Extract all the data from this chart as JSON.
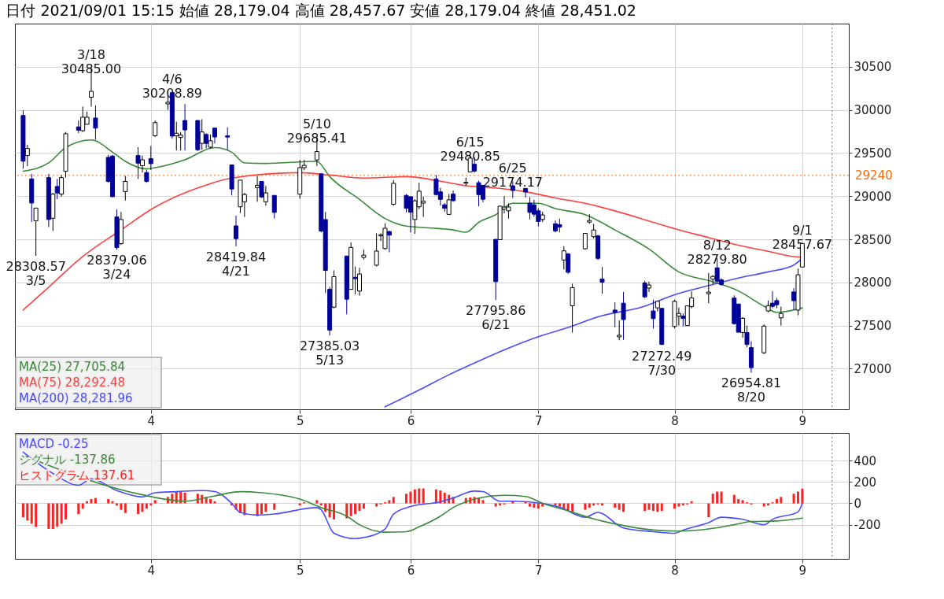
{
  "chart_data": [
    {
      "type": "candlestick",
      "title": "日付 2021/09/01 15:15 始値 28,179.04 高値 28,457.67 安値 28,179.04 終値 28,451.02",
      "x": [
        "2021-03-02",
        "2021-03-03",
        "2021-03-04",
        "2021-03-05",
        "2021-03-08",
        "2021-03-09",
        "2021-03-10",
        "2021-03-11",
        "2021-03-12",
        "2021-03-15",
        "2021-03-16",
        "2021-03-17",
        "2021-03-18",
        "2021-03-19",
        "2021-03-22",
        "2021-03-23",
        "2021-03-24",
        "2021-03-25",
        "2021-03-26",
        "2021-03-29",
        "2021-03-30",
        "2021-03-31",
        "2021-04-01",
        "2021-04-02",
        "2021-04-05",
        "2021-04-06",
        "2021-04-07",
        "2021-04-08",
        "2021-04-09",
        "2021-04-12",
        "2021-04-13",
        "2021-04-14",
        "2021-04-15",
        "2021-04-16",
        "2021-04-19",
        "2021-04-20",
        "2021-04-21",
        "2021-04-22",
        "2021-04-23",
        "2021-04-26",
        "2021-04-27",
        "2021-04-28",
        "2021-04-30",
        "2021-05-06",
        "2021-05-07",
        "2021-05-10",
        "2021-05-11",
        "2021-05-12",
        "2021-05-13",
        "2021-05-14",
        "2021-05-17",
        "2021-05-18",
        "2021-05-19",
        "2021-05-20",
        "2021-05-21",
        "2021-05-24",
        "2021-05-25",
        "2021-05-26",
        "2021-05-27",
        "2021-05-28",
        "2021-05-31",
        "2021-06-01",
        "2021-06-02",
        "2021-06-03",
        "2021-06-04",
        "2021-06-07",
        "2021-06-08",
        "2021-06-09",
        "2021-06-10",
        "2021-06-11",
        "2021-06-14",
        "2021-06-15",
        "2021-06-16",
        "2021-06-17",
        "2021-06-18",
        "2021-06-21",
        "2021-06-22",
        "2021-06-23",
        "2021-06-24",
        "2021-06-25",
        "2021-06-28",
        "2021-06-29",
        "2021-06-30",
        "2021-07-01",
        "2021-07-02",
        "2021-07-05",
        "2021-07-06",
        "2021-07-07",
        "2021-07-08",
        "2021-07-09",
        "2021-07-12",
        "2021-07-13",
        "2021-07-14",
        "2021-07-15",
        "2021-07-16",
        "2021-07-19",
        "2021-07-20",
        "2021-07-21",
        "2021-07-26",
        "2021-07-27",
        "2021-07-28",
        "2021-07-29",
        "2021-07-30",
        "2021-08-02",
        "2021-08-03",
        "2021-08-04",
        "2021-08-05",
        "2021-08-06",
        "2021-08-10",
        "2021-08-11",
        "2021-08-12",
        "2021-08-13",
        "2021-08-16",
        "2021-08-17",
        "2021-08-18",
        "2021-08-19",
        "2021-08-20",
        "2021-08-23",
        "2021-08-24",
        "2021-08-25",
        "2021-08-26",
        "2021-08-27",
        "2021-08-30",
        "2021-08-31",
        "2021-09-01"
      ],
      "ohlc": [
        [
          29935,
          29994,
          29318,
          29406
        ],
        [
          29471,
          29597,
          29347,
          29553
        ],
        [
          29200,
          29259,
          28700,
          28921
        ],
        [
          28715,
          28862,
          28308.57,
          28862
        ],
        [
          29215,
          29259,
          28642,
          28730
        ],
        [
          28744,
          29038,
          28597,
          29024
        ],
        [
          29112,
          29200,
          28965,
          29036
        ],
        [
          29024,
          29244,
          28994,
          29215
        ],
        [
          29288,
          29744,
          29215,
          29724
        ],
        [
          29803,
          29877,
          29730,
          29765
        ],
        [
          29759,
          30038,
          29744,
          29915
        ],
        [
          29833,
          29980,
          29833,
          29915
        ],
        [
          30147,
          30485,
          30038,
          30215
        ],
        [
          29906,
          30053,
          29656,
          29789
        ],
        [
          29450,
          29480,
          29156,
          29171
        ],
        [
          29465,
          29480,
          28988,
          28994
        ],
        [
          28759,
          28847,
          28379.06,
          28405
        ],
        [
          28450,
          28818,
          28435,
          28730
        ],
        [
          29053,
          29235,
          28950,
          29171
        ],
        [
          29471,
          29568,
          29200,
          29383
        ],
        [
          29353,
          29471,
          29274,
          29421
        ],
        [
          29274,
          29303,
          29156,
          29171
        ],
        [
          29436,
          29583,
          29303,
          29377
        ],
        [
          29700,
          29877,
          29685,
          29853
        ],
        [
          30070,
          30167,
          30000,
          30089
        ],
        [
          30200,
          30208.89,
          29665,
          29696
        ],
        [
          29700,
          29862,
          29530,
          29730
        ],
        [
          29680,
          29744,
          29530,
          29708
        ],
        [
          29877,
          30067,
          29530,
          29768
        ],
        [
          29877,
          29880,
          29524,
          29538
        ],
        [
          29612,
          29892,
          29538,
          29744
        ],
        [
          29715,
          29730,
          29553,
          29612
        ],
        [
          29568,
          29715,
          29553,
          29642
        ],
        [
          29789,
          29789,
          29612,
          29686
        ],
        [
          29700,
          29798,
          29538,
          29685
        ],
        [
          29362,
          29362,
          29009,
          29083
        ],
        [
          28656,
          28774,
          28419.84,
          28508
        ],
        [
          28877,
          29186,
          28804,
          29186
        ],
        [
          28935,
          29038,
          28759,
          29020
        ],
        [
          29100,
          29230,
          28935,
          29126
        ],
        [
          29171,
          29171,
          28980,
          28991
        ],
        [
          28935,
          29118,
          28890,
          29038
        ],
        [
          29009,
          29009,
          28741,
          28812
        ],
        [
          29024,
          29420,
          28970,
          29331
        ],
        [
          29330,
          29420,
          29300,
          29357
        ],
        [
          29420,
          29685.41,
          29350,
          29518
        ],
        [
          29259,
          29259,
          28580,
          28597
        ],
        [
          28729,
          28818,
          27877,
          28140
        ],
        [
          27920,
          27950,
          27385.03,
          27448
        ],
        [
          27714,
          28140,
          27700,
          28067
        ],
        [
          28306,
          28306,
          27630,
          27806
        ],
        [
          27920,
          28465,
          27920,
          28406
        ],
        [
          28060,
          28185,
          27862,
          28044
        ],
        [
          27900,
          28170,
          27847,
          28098
        ],
        [
          28290,
          28380,
          28265,
          28317
        ],
        [
          28200,
          28570,
          28185,
          28364
        ],
        [
          28540,
          28570,
          28480,
          28553
        ],
        [
          28393,
          28685,
          28380,
          28628
        ],
        [
          28590,
          28600,
          28350,
          28549
        ],
        [
          28906,
          29186,
          28890,
          29149
        ],
        [
          29009,
          29024,
          28812,
          28860
        ],
        [
          28994,
          28994,
          28580,
          28814
        ],
        [
          28730,
          28965,
          28565,
          28946
        ],
        [
          28877,
          29156,
          28850,
          29058
        ],
        [
          28920,
          28994,
          28760,
          28941
        ],
        [
          29200,
          29244,
          29009,
          29019
        ],
        [
          29050,
          29097,
          28892,
          28963
        ],
        [
          28900,
          28920,
          28818,
          28860
        ],
        [
          28789,
          29024,
          28789,
          28958
        ],
        [
          29024,
          29065,
          28935,
          28948
        ],
        [
          29150,
          29215,
          29120,
          29161
        ],
        [
          29282,
          29480.85,
          29274,
          29441
        ],
        [
          29370,
          29450,
          29274,
          29291
        ],
        [
          29156,
          29180,
          28882,
          29018
        ],
        [
          29126,
          29126,
          28930,
          28964
        ],
        [
          28500,
          28500,
          27795.86,
          28010
        ],
        [
          28496,
          28890,
          28496,
          28884
        ],
        [
          28850,
          29000,
          28800,
          28874
        ],
        [
          28830,
          28918,
          28740,
          28875
        ],
        [
          29120,
          29174.17,
          28980,
          29066
        ],
        [
          29090,
          29090,
          28985,
          29048
        ],
        [
          28920,
          28990,
          28730,
          28812
        ],
        [
          28900,
          28960,
          28760,
          28791
        ],
        [
          28830,
          28860,
          28650,
          28707
        ],
        [
          28730,
          28820,
          28700,
          28783
        ],
        [
          28680,
          28720,
          28580,
          28598
        ],
        [
          28670,
          28740,
          28580,
          28643
        ],
        [
          28260,
          28420,
          28150,
          28366
        ],
        [
          28330,
          28340,
          28100,
          28118
        ],
        [
          27730,
          27985,
          27419,
          27940
        ],
        [
          28390,
          28570,
          28380,
          28569
        ],
        [
          28700,
          28790,
          28680,
          28718
        ],
        [
          28530,
          28680,
          28510,
          28608
        ],
        [
          28540,
          28550,
          28260,
          28279
        ],
        [
          28040,
          28180,
          27870,
          28003
        ],
        [
          27680,
          27770,
          27480,
          27652
        ],
        [
          27370,
          27560,
          27330,
          27388
        ],
        [
          27760,
          27890,
          27335,
          27570
        ],
        [
          27995,
          28020,
          27820,
          27833
        ],
        [
          27935,
          28010,
          27890,
          27970
        ],
        [
          27670,
          27800,
          27465,
          27581
        ],
        [
          27706,
          27782,
          27665,
          27782
        ],
        [
          27700,
          27700,
          27272.49,
          27283
        ],
        [
          27490,
          27800,
          27470,
          27781
        ],
        [
          27610,
          27710,
          27500,
          27641
        ],
        [
          27610,
          27640,
          27490,
          27584
        ],
        [
          27500,
          27730,
          27500,
          27728
        ],
        [
          27720,
          27895,
          27700,
          27820
        ],
        [
          27870,
          28110,
          27760,
          27888
        ],
        [
          28040,
          28085,
          27980,
          28070
        ],
        [
          28170,
          28279.8,
          27990,
          28015
        ],
        [
          28030,
          28050,
          27960,
          27977
        ],
        [
          27820,
          27850,
          27510,
          27523
        ],
        [
          27750,
          27750,
          27420,
          27424
        ],
        [
          27420,
          27600,
          27360,
          27585
        ],
        [
          27420,
          27500,
          27250,
          27281
        ],
        [
          27245,
          27320,
          26954.81,
          27013
        ],
        [
          27185,
          27515,
          27170,
          27494
        ],
        [
          27670,
          27790,
          27655,
          27732
        ],
        [
          27760,
          27900,
          27700,
          27724
        ],
        [
          27790,
          27820,
          27700,
          27742
        ],
        [
          27590,
          27720,
          27500,
          27641
        ],
        [
          27890,
          27935,
          27680,
          27789
        ],
        [
          27680,
          28160,
          27620,
          28089
        ],
        [
          28179.04,
          28457.67,
          28179.04,
          28451.02
        ]
      ],
      "colors": [
        "#000099",
        "#ffffff",
        "#000099",
        "#ffffff",
        "#000099",
        "#ffffff",
        "#000099",
        "#ffffff",
        "#ffffff",
        "#000099",
        "#ffffff",
        "#ffffff",
        "#ffffff",
        "#000099",
        "#000099",
        "#000099",
        "#000099",
        "#ffffff",
        "#ffffff",
        "#000099",
        "#ffffff",
        "#000099",
        "#000099",
        "#ffffff",
        "#ffffff",
        "#000099",
        "#ffffff",
        "#ffffff",
        "#000099",
        "#000099",
        "#ffffff",
        "#000099",
        "#ffffff",
        "#000099",
        "#000099",
        "#000099",
        "#000099",
        "#ffffff",
        "#ffffff",
        "#ffffff",
        "#000099",
        "#ffffff",
        "#000099",
        "#ffffff",
        "#ffffff",
        "#ffffff",
        "#000099",
        "#000099",
        "#000099",
        "#ffffff",
        "#000099",
        "#ffffff",
        "#000099",
        "#ffffff",
        "#ffffff",
        "#ffffff",
        "#ffffff",
        "#ffffff",
        "#000099",
        "#ffffff",
        "#000099",
        "#000099",
        "#ffffff",
        "#ffffff",
        "#ffffff",
        "#000099",
        "#000099",
        "#000099",
        "#ffffff",
        "#000099",
        "#ffffff",
        "#ffffff",
        "#000099",
        "#000099",
        "#000099",
        "#000099",
        "#ffffff",
        "#ffffff",
        "#ffffff",
        "#000099",
        "#000099",
        "#000099",
        "#000099",
        "#000099",
        "#ffffff",
        "#000099",
        "#000099",
        "#ffffff",
        "#000099",
        "#ffffff",
        "#ffffff",
        "#ffffff",
        "#ffffff",
        "#000099",
        "#000099",
        "#000099",
        "#ffffff",
        "#000099",
        "#000099",
        "#ffffff",
        "#000099",
        "#ffffff",
        "#000099",
        "#ffffff",
        "#ffffff",
        "#000099",
        "#ffffff",
        "#ffffff",
        "#ffffff",
        "#ffffff",
        "#000099",
        "#000099",
        "#000099",
        "#000099",
        "#ffffff",
        "#000099",
        "#000099",
        "#ffffff",
        "#ffffff",
        "#000099",
        "#000099",
        "#ffffff",
        "#000099",
        "#ffffff",
        "#ffffff"
      ],
      "series": [
        {
          "name": "MA(25) 27,705.84",
          "type": "line",
          "color": "#3a8a3a",
          "x": [
            "2021-03-02",
            "2021-03-08",
            "2021-03-12",
            "2021-03-18",
            "2021-03-23",
            "2021-03-26",
            "2021-03-31",
            "2021-04-02",
            "2021-04-09",
            "2021-04-16",
            "2021-04-20",
            "2021-04-23",
            "2021-04-28",
            "2021-05-10",
            "2021-05-13",
            "2021-05-20",
            "2021-05-26",
            "2021-05-31",
            "2021-06-07",
            "2021-06-11",
            "2021-06-14",
            "2021-06-17",
            "2021-06-21",
            "2021-06-25",
            "2021-07-01",
            "2021-07-05",
            "2021-07-12",
            "2021-07-19",
            "2021-07-27",
            "2021-08-03",
            "2021-08-11",
            "2021-08-17",
            "2021-08-23",
            "2021-08-26",
            "2021-09-01"
          ],
          "values": [
            29289,
            29386,
            29563,
            29652,
            29510,
            29404,
            29316,
            29330,
            29422,
            29563,
            29510,
            29386,
            29380,
            29404,
            29227,
            28962,
            28741,
            28653,
            28627,
            28609,
            28582,
            28697,
            28786,
            28918,
            28918,
            28856,
            28786,
            28609,
            28388,
            28123,
            28008,
            27902,
            27725,
            27654,
            27705.84
          ]
        },
        {
          "name": "MA(75) 28,292.48",
          "type": "line",
          "color": "#ff4040",
          "x": [
            "2021-03-02",
            "2021-03-08",
            "2021-03-16",
            "2021-03-25",
            "2021-04-02",
            "2021-04-12",
            "2021-04-20",
            "2021-05-06",
            "2021-05-13",
            "2021-05-21",
            "2021-05-31",
            "2021-06-07",
            "2021-06-14",
            "2021-06-21",
            "2021-06-28",
            "2021-07-05",
            "2021-07-12",
            "2021-07-19",
            "2021-07-28",
            "2021-08-03",
            "2021-08-10",
            "2021-08-17",
            "2021-08-24",
            "2021-08-30",
            "2021-09-01"
          ],
          "values": [
            27681,
            27946,
            28300,
            28609,
            28874,
            29095,
            29210,
            29272,
            29245,
            29210,
            29227,
            29183,
            29121,
            29095,
            29051,
            28980,
            28918,
            28830,
            28697,
            28609,
            28521,
            28432,
            28361,
            28300,
            28292.48
          ]
        },
        {
          "name": "MA(200) 28,281.96",
          "type": "line",
          "color": "#4a4aff",
          "x": [
            "2021-05-26",
            "2021-06-03",
            "2021-06-10",
            "2021-06-17",
            "2021-06-24",
            "2021-07-01",
            "2021-07-08",
            "2021-07-15",
            "2021-07-26",
            "2021-08-02",
            "2021-08-10",
            "2021-08-17",
            "2021-08-24",
            "2021-08-30",
            "2021-09-01"
          ],
          "values": [
            26559,
            26753,
            26930,
            27089,
            27239,
            27372,
            27478,
            27601,
            27725,
            27858,
            27964,
            28052,
            28123,
            28202,
            28281.96
          ]
        }
      ],
      "annotations": [
        {
          "text": "3/18\n30485.00",
          "y": 30485
        },
        {
          "text": "4/6\n30208.89",
          "y": 30208.89
        },
        {
          "text": "5/10\n29685.41",
          "y": 29685.41
        },
        {
          "text": "6/15\n29480.85",
          "y": 29480.85
        },
        {
          "text": "6/25\n29174.17",
          "y": 29174.17
        },
        {
          "text": "8/12\n28279.80",
          "y": 28279.8
        },
        {
          "text": "9/1\n28457.67",
          "y": 28457.67
        },
        {
          "text": "28308.57\n3/5",
          "y": 28308.57
        },
        {
          "text": "28379.06\n3/24",
          "y": 28379.06
        },
        {
          "text": "28419.84\n4/21",
          "y": 28419.84
        },
        {
          "text": "27385.03\n5/13",
          "y": 27385.03
        },
        {
          "text": "27795.86\n6/21",
          "y": 27795.86
        },
        {
          "text": "27272.49\n7/30",
          "y": 27272.49
        },
        {
          "text": "26954.81\n8/20",
          "y": 26954.81
        }
      ],
      "ref_lines": [
        {
          "axis": "y",
          "value": 29240,
          "label": "29240",
          "color": "#ff6600",
          "line_style": "dotted"
        },
        {
          "axis": "x",
          "value": "2021-09-08",
          "line_style": "dotted"
        }
      ],
      "xlim": [
        "2021-03-01",
        "2021-09-11"
      ],
      "xticks": [
        {
          "value": "2021-04-01",
          "label": "4"
        },
        {
          "value": "2021-05-06",
          "label": "5"
        },
        {
          "value": "2021-06-01",
          "label": "6"
        },
        {
          "value": "2021-07-01",
          "label": "7"
        },
        {
          "value": "2021-08-02",
          "label": "8"
        },
        {
          "value": "2021-09-01",
          "label": "9"
        }
      ],
      "ylim": [
        26530,
        31000
      ],
      "yticks": [
        27000,
        27500,
        28000,
        28500,
        29000,
        29500,
        30000,
        30500
      ],
      "grid": true,
      "legend": "bottom left"
    },
    {
      "type": "line",
      "x": [
        "2021-03-02",
        "2021-03-03",
        "2021-03-04",
        "2021-03-05",
        "2021-03-08",
        "2021-03-09",
        "2021-03-10",
        "2021-03-11",
        "2021-03-12",
        "2021-03-15",
        "2021-03-16",
        "2021-03-17",
        "2021-03-18",
        "2021-03-19",
        "2021-03-22",
        "2021-03-23",
        "2021-03-24",
        "2021-03-25",
        "2021-03-26",
        "2021-03-29",
        "2021-03-30",
        "2021-03-31",
        "2021-04-01",
        "2021-04-02",
        "2021-04-05",
        "2021-04-06",
        "2021-04-07",
        "2021-04-08",
        "2021-04-09",
        "2021-04-12",
        "2021-04-13",
        "2021-04-14",
        "2021-04-15",
        "2021-04-16",
        "2021-04-19",
        "2021-04-20",
        "2021-04-21",
        "2021-04-22",
        "2021-04-23",
        "2021-04-26",
        "2021-04-27",
        "2021-04-28",
        "2021-04-30",
        "2021-05-06",
        "2021-05-07",
        "2021-05-10",
        "2021-05-11",
        "2021-05-12",
        "2021-05-13",
        "2021-05-14",
        "2021-05-17",
        "2021-05-18",
        "2021-05-19",
        "2021-05-20",
        "2021-05-21",
        "2021-05-24",
        "2021-05-25",
        "2021-05-26",
        "2021-05-27",
        "2021-05-28",
        "2021-05-31",
        "2021-06-01",
        "2021-06-02",
        "2021-06-03",
        "2021-06-04",
        "2021-06-07",
        "2021-06-08",
        "2021-06-09",
        "2021-06-10",
        "2021-06-11",
        "2021-06-14",
        "2021-06-15",
        "2021-06-16",
        "2021-06-17",
        "2021-06-18",
        "2021-06-21",
        "2021-06-22",
        "2021-06-23",
        "2021-06-24",
        "2021-06-25",
        "2021-06-28",
        "2021-06-29",
        "2021-06-30",
        "2021-07-01",
        "2021-07-02",
        "2021-07-05",
        "2021-07-06",
        "2021-07-07",
        "2021-07-08",
        "2021-07-09",
        "2021-07-12",
        "2021-07-13",
        "2021-07-14",
        "2021-07-15",
        "2021-07-16",
        "2021-07-19",
        "2021-07-20",
        "2021-07-21",
        "2021-07-26",
        "2021-07-27",
        "2021-07-28",
        "2021-07-29",
        "2021-07-30",
        "2021-08-02",
        "2021-08-03",
        "2021-08-04",
        "2021-08-05",
        "2021-08-06",
        "2021-08-10",
        "2021-08-11",
        "2021-08-12",
        "2021-08-13",
        "2021-08-16",
        "2021-08-17",
        "2021-08-18",
        "2021-08-19",
        "2021-08-20",
        "2021-08-23",
        "2021-08-24",
        "2021-08-25",
        "2021-08-26",
        "2021-08-27",
        "2021-08-30",
        "2021-08-31",
        "2021-09-01"
      ],
      "series": [
        {
          "name": "MACD -0.25",
          "type": "line",
          "color": "#4a4aff",
          "x": [
            "2021-03-02",
            "2021-03-09",
            "2021-03-15",
            "2021-03-18",
            "2021-03-24",
            "2021-03-30",
            "2021-04-02",
            "2021-04-07",
            "2021-04-13",
            "2021-04-16",
            "2021-04-20",
            "2021-04-22",
            "2021-04-26",
            "2021-04-30",
            "2021-05-10",
            "2021-05-11",
            "2021-05-14",
            "2021-05-19",
            "2021-05-21",
            "2021-05-26",
            "2021-05-28",
            "2021-06-01",
            "2021-06-08",
            "2021-06-11",
            "2021-06-16",
            "2021-06-18",
            "2021-06-22",
            "2021-06-25",
            "2021-07-02",
            "2021-07-06",
            "2021-07-12",
            "2021-07-15",
            "2021-07-21",
            "2021-07-28",
            "2021-08-02",
            "2021-08-04",
            "2021-08-10",
            "2021-08-13",
            "2021-08-18",
            "2021-08-23",
            "2021-08-25",
            "2021-08-31",
            "2021-09-01"
          ],
          "values": [
            480,
            280,
            170,
            230,
            120,
            60,
            100,
            110,
            120,
            110,
            0,
            -85,
            -110,
            -100,
            -40,
            -60,
            -280,
            -330,
            -320,
            -240,
            -100,
            -30,
            15,
            50,
            115,
            110,
            20,
            20,
            0,
            -35,
            -130,
            -85,
            -230,
            -265,
            -280,
            -250,
            -180,
            -130,
            -150,
            -200,
            -150,
            -80,
            -0.25
          ]
        },
        {
          "name": "シグナル -137.86",
          "type": "line",
          "color": "#3a8a3a",
          "x": [
            "2021-03-02",
            "2021-03-30",
            "2021-04-09",
            "2021-04-16",
            "2021-04-22",
            "2021-04-27",
            "2021-05-06",
            "2021-05-11",
            "2021-05-17",
            "2021-05-20",
            "2021-05-26",
            "2021-05-31",
            "2021-06-03",
            "2021-06-08",
            "2021-06-11",
            "2021-06-17",
            "2021-06-23",
            "2021-06-28",
            "2021-07-02",
            "2021-07-08",
            "2021-07-14",
            "2021-07-20",
            "2021-07-28",
            "2021-08-03",
            "2021-08-10",
            "2021-08-16",
            "2021-08-20",
            "2021-08-26",
            "2021-09-01"
          ],
          "values": [
            450,
            80,
            20,
            70,
            110,
            100,
            40,
            -40,
            -120,
            -200,
            -270,
            -265,
            -220,
            -120,
            -40,
            50,
            75,
            65,
            0,
            -70,
            -145,
            -200,
            -250,
            -260,
            -240,
            -200,
            -170,
            -165,
            -137.86
          ]
        },
        {
          "name": "ヒストグラム 137.61",
          "type": "bar",
          "color": "#ff2020",
          "values": [
            -130,
            -160,
            -190,
            -220,
            -240,
            -240,
            -220,
            -190,
            -150,
            -100,
            -50,
            20,
            40,
            50,
            40,
            20,
            -20,
            -60,
            -90,
            -100,
            -80,
            -50,
            -20,
            30,
            60,
            90,
            110,
            110,
            100,
            90,
            80,
            60,
            40,
            20,
            0,
            -20,
            -60,
            -90,
            -110,
            -120,
            -100,
            -80,
            -60,
            -20,
            10,
            30,
            -20,
            -80,
            -130,
            -150,
            -140,
            -120,
            -100,
            -70,
            -50,
            -30,
            -10,
            10,
            30,
            60,
            90,
            110,
            130,
            140,
            140,
            130,
            120,
            100,
            80,
            60,
            50,
            55,
            60,
            50,
            30,
            -30,
            -20,
            -10,
            0,
            20,
            15,
            -30,
            -40,
            -50,
            -30,
            -20,
            -30,
            -50,
            -70,
            -80,
            -60,
            -40,
            -20,
            -10,
            -20,
            -40,
            -60,
            -80,
            -70,
            -60,
            -70,
            -80,
            -70,
            -50,
            -30,
            -20,
            -10,
            20,
            -130,
            90,
            110,
            110,
            80,
            40,
            30,
            10,
            -10,
            -30,
            -20,
            10,
            40,
            60,
            90,
            110,
            137.61
          ]
        }
      ],
      "ref_lines": [
        {
          "axis": "x",
          "value": "2021-09-08",
          "line_style": "dotted"
        }
      ],
      "xlim": [
        "2021-03-01",
        "2021-09-11"
      ],
      "xticks": [
        {
          "value": "2021-04-01",
          "label": "4"
        },
        {
          "value": "2021-05-06",
          "label": "5"
        },
        {
          "value": "2021-06-01",
          "label": "6"
        },
        {
          "value": "2021-07-01",
          "label": "7"
        },
        {
          "value": "2021-08-02",
          "label": "8"
        },
        {
          "value": "2021-09-01",
          "label": "9"
        }
      ],
      "ylim": [
        -520,
        660
      ],
      "yticks": [
        -200,
        0,
        200,
        400
      ],
      "grid": true,
      "legend": "top left"
    }
  ]
}
